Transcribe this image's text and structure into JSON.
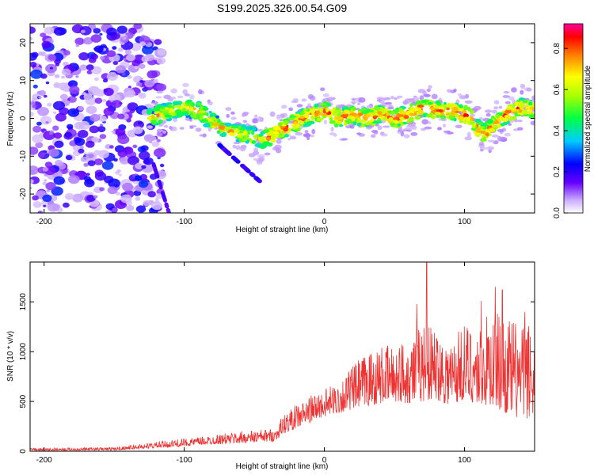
{
  "title": "S199.2025.326.00.54.G09",
  "chart_data": [
    {
      "type": "heatmap",
      "xlabel": "Height of straight line (km)",
      "ylabel": "Frequency (Hz)",
      "xlim": [
        -210,
        150
      ],
      "ylim": [
        -25,
        25
      ],
      "xticks": [
        -200,
        -100,
        0,
        100
      ],
      "yticks": [
        -20,
        -10,
        0,
        10,
        20
      ],
      "colorbar": {
        "label": "Normalized spectral amplitude",
        "range": [
          0.0,
          0.92
        ],
        "ticks": [
          "0.0",
          "0.2",
          "0.4",
          "0.6",
          "0.8"
        ],
        "tick_values": [
          0.0,
          0.2,
          0.4,
          0.6,
          0.8
        ]
      },
      "ridge": {
        "x": [
          -125,
          -110,
          -100,
          -90,
          -80,
          -70,
          -60,
          -50,
          -45,
          -40,
          -30,
          -20,
          -10,
          0,
          10,
          20,
          30,
          40,
          50,
          60,
          70,
          80,
          90,
          100,
          105,
          110,
          115,
          120,
          130,
          140,
          150
        ],
        "y": [
          0,
          2,
          3,
          2,
          -1,
          -3,
          -4,
          -5,
          -6,
          -5,
          -3,
          -1,
          1,
          2,
          0,
          1,
          0,
          1,
          0,
          1,
          3,
          2,
          2,
          1,
          0,
          -3,
          -4,
          -2,
          1,
          3,
          2
        ]
      }
    },
    {
      "type": "line",
      "xlabel": "Height of straight line (km)",
      "ylabel": "SNR (10 * v/v)",
      "xlim": [
        -210,
        150
      ],
      "ylim": [
        0,
        1900
      ],
      "xticks": [
        -200,
        -100,
        0,
        100
      ],
      "yticks": [
        0,
        500,
        1000,
        1500
      ],
      "series": [
        {
          "name": "SNR",
          "color": "#ee3333",
          "envelope": {
            "x": [
              -210,
              -150,
              -110,
              -80,
              -60,
              -35,
              -30,
              -20,
              -10,
              0,
              10,
              20,
              30,
              40,
              50,
              60,
              70,
              80,
              90,
              100,
              110,
              120,
              130,
              140,
              150
            ],
            "lo": [
              5,
              10,
              40,
              70,
              80,
              100,
              170,
              230,
              290,
              350,
              380,
              420,
              450,
              480,
              500,
              480,
              500,
              520,
              450,
              520,
              460,
              450,
              380,
              320,
              330
            ],
            "hi": [
              30,
              40,
              110,
              160,
              200,
              230,
              360,
              470,
              560,
              620,
              700,
              860,
              1000,
              1050,
              1080,
              1150,
              1300,
              1250,
              1150,
              1300,
              1250,
              1450,
              1350,
              1300,
              1350
            ]
          },
          "spikes": [
            [
              73,
              1900
            ],
            [
              66,
              1480
            ],
            [
              112,
              1510
            ],
            [
              122,
              1650
            ],
            [
              127,
              1620
            ],
            [
              143,
              1400
            ]
          ]
        }
      ]
    }
  ]
}
